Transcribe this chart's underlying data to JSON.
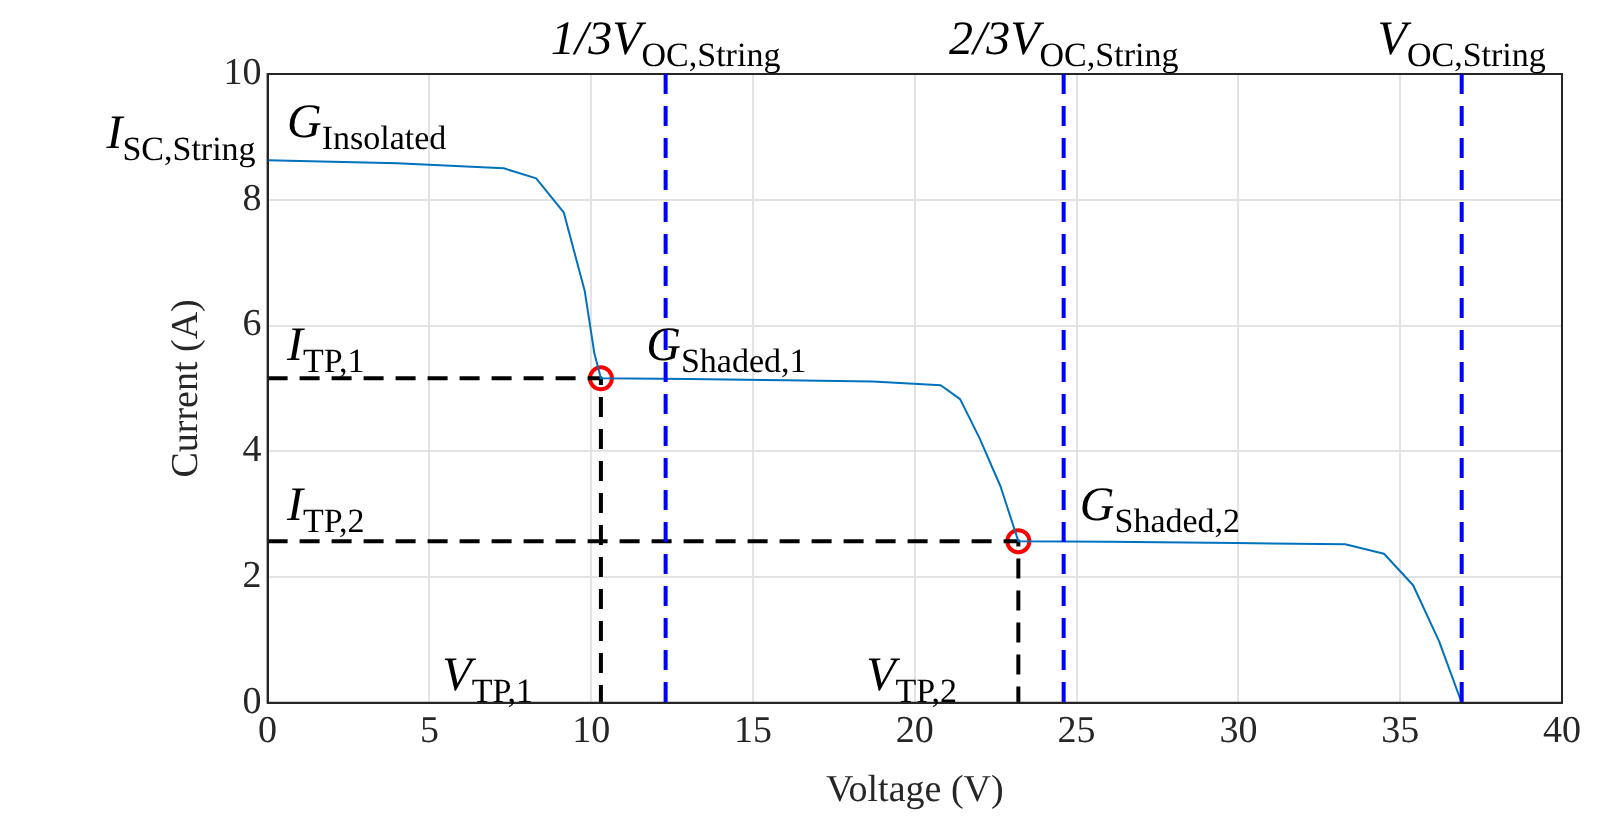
{
  "chart_data": {
    "type": "line",
    "xlabel": "Voltage (V)",
    "ylabel": "Current (A)",
    "xlim": [
      0,
      40
    ],
    "ylim": [
      0,
      10
    ],
    "xticks": [
      0,
      5,
      10,
      15,
      20,
      25,
      30,
      35,
      40
    ],
    "yticks": [
      0,
      2,
      4,
      6,
      8,
      10
    ],
    "grid": true,
    "legend": false,
    "series": [
      {
        "color": "#0072bd",
        "line_style": "solid",
        "marker": "none",
        "x": [
          0,
          4,
          7.3,
          8.3,
          9.15,
          9.8,
          10.1,
          10.3,
          13,
          16,
          18.7,
          20.8,
          21.4,
          22,
          22.65,
          23.2,
          26,
          29.9,
          33.3,
          34.5,
          35.4,
          36.2,
          36.9
        ],
        "values": [
          8.63,
          8.58,
          8.5,
          8.34,
          7.8,
          6.55,
          5.55,
          5.16,
          5.15,
          5.13,
          5.11,
          5.05,
          4.83,
          4.21,
          3.44,
          2.57,
          2.56,
          2.54,
          2.52,
          2.37,
          1.87,
          0.98,
          0
        ]
      },
      {
        "color": "#000000",
        "line_style": "dashed",
        "marker": "none",
        "x": [
          0,
          10.3,
          10.3
        ],
        "values": [
          5.16,
          5.16,
          0
        ]
      },
      {
        "color": "#000000",
        "line_style": "dashed",
        "marker": "none",
        "x": [
          0,
          23.2,
          23.2
        ],
        "values": [
          2.57,
          2.57,
          0
        ]
      },
      {
        "type": "scatter",
        "color": "#ff0000",
        "marker": "circle",
        "x": [
          10.3,
          23.2
        ],
        "values": [
          5.16,
          2.57
        ]
      }
    ],
    "ref_lines": [
      {
        "axis": "x",
        "value": 12.3,
        "label": "1/3V$_{OC,String}$",
        "color": "#0000ff",
        "line_style": "dashed"
      },
      {
        "axis": "x",
        "value": 24.6,
        "label": "2/3V$_{OC,String}$",
        "color": "#0000ff",
        "line_style": "dashed"
      },
      {
        "axis": "x",
        "value": 36.9,
        "label": "V$_{OC,String}$",
        "color": "#0000ff",
        "line_style": "dashed"
      }
    ],
    "annotations": [
      {
        "text": "I$_{SC,String}$",
        "x": 0,
        "y": 8.63
      },
      "G$_{Insolated}$",
      "I$_{TP,1}$",
      "G$_{Shaded,1}$",
      "I$_{TP,2}$",
      "G$_{Shaded,2}$",
      "V$_{TP,1}$",
      "V$_{TP,2}$"
    ]
  }
}
